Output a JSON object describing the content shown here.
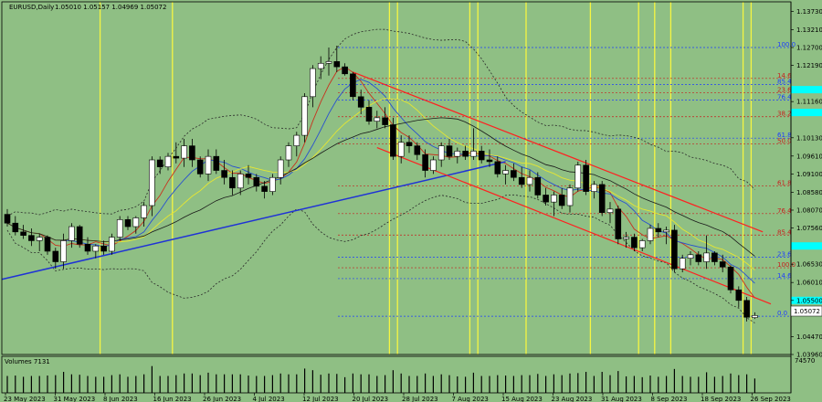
{
  "header": {
    "symbol": "EURUSD,Daily",
    "ohlc": "1.05010 1.05157 1.04969 1.05072"
  },
  "volume_panel": {
    "label": "Volumes 7131",
    "axis_max": "74570"
  },
  "price_axis": {
    "labels": [
      "1.13730",
      "1.13210",
      "1.12700",
      "1.12190",
      "1.11160",
      "1.10130",
      "1.09610",
      "1.09100",
      "1.08580",
      "1.08070",
      "1.07560",
      "1.06530",
      "1.06010",
      "1.05500",
      "1.04470",
      "1.03960"
    ],
    "current_price": "1.05072"
  },
  "time_axis": [
    "23 May 2023",
    "31 May 2023",
    "8 Jun 2023",
    "16 Jun 2023",
    "26 Jun 2023",
    "4 Jul 2023",
    "12 Jul 2023",
    "20 Jul 2023",
    "28 Jul 2023",
    "7 Aug 2023",
    "15 Aug 2023",
    "23 Aug 2023",
    "31 Aug 2023",
    "8 Sep 2023",
    "18 Sep 2023",
    "26 Sep 2023"
  ],
  "fib_levels": [
    {
      "label": "100.0",
      "color": "#1e3cff",
      "price": 1.127
    },
    {
      "label": "14.6",
      "color": "#c81e1e",
      "price": 1.1182
    },
    {
      "label": "85.4",
      "color": "#1e3cff",
      "price": 1.1165
    },
    {
      "label": "23.6",
      "color": "#c81e1e",
      "price": 1.1141
    },
    {
      "label": "76.4",
      "color": "#1e3cff",
      "price": 1.112
    },
    {
      "label": "38.2",
      "color": "#c81e1e",
      "price": 1.1073
    },
    {
      "label": "61.8",
      "color": "#1e3cff",
      "price": 1.1012
    },
    {
      "label": "50.0",
      "color": "#c81e1e",
      "price": 1.0996
    },
    {
      "label": "61.8",
      "color": "#c81e1e",
      "price": 1.0876
    },
    {
      "label": "76.4",
      "color": "#c81e1e",
      "price": 1.0797
    },
    {
      "label": "85.4",
      "color": "#c81e1e",
      "price": 1.0736
    },
    {
      "label": "23.6",
      "color": "#1e3cff",
      "price": 1.0673
    },
    {
      "label": "100.0",
      "color": "#c81e1e",
      "price": 1.0643
    },
    {
      "label": "14.6",
      "color": "#1e3cff",
      "price": 1.0612
    },
    {
      "label": "0.0",
      "color": "#1e3cff",
      "price": 1.0505
    }
  ],
  "colors": {
    "background": "#8fbf84",
    "bull": "#ffffff",
    "bear": "#000000",
    "channel": "#ff2020",
    "trendline": "#1f32d6",
    "vline": "#f5f542",
    "ma_red": "#c8321e",
    "ma_blue": "#2850d0",
    "ma_yellow": "#e6e632",
    "ma_black": "#1a1a1a",
    "band": "#2a2a2a",
    "cyan_box": "#00ffff"
  },
  "chart_data": {
    "type": "candlestick",
    "symbol": "EURUSD",
    "timeframe": "Daily",
    "ylim": [
      1.0396,
      1.14
    ],
    "x_ticks": [
      "23 May 2023",
      "31 May 2023",
      "8 Jun 2023",
      "16 Jun 2023",
      "26 Jun 2023",
      "4 Jul 2023",
      "12 Jul 2023",
      "20 Jul 2023",
      "28 Jul 2023",
      "7 Aug 2023",
      "15 Aug 2023",
      "23 Aug 2023",
      "31 Aug 2023",
      "8 Sep 2023",
      "18 Sep 2023",
      "26 Sep 2023"
    ],
    "ohlc": [
      {
        "o": 1.0795,
        "h": 1.081,
        "l": 1.076,
        "c": 1.077
      },
      {
        "o": 1.077,
        "h": 1.079,
        "l": 1.0735,
        "c": 1.0745
      },
      {
        "o": 1.0745,
        "h": 1.0765,
        "l": 1.0725,
        "c": 1.0735
      },
      {
        "o": 1.0735,
        "h": 1.0755,
        "l": 1.0705,
        "c": 1.072
      },
      {
        "o": 1.072,
        "h": 1.074,
        "l": 1.069,
        "c": 1.073
      },
      {
        "o": 1.073,
        "h": 1.0735,
        "l": 1.068,
        "c": 1.069
      },
      {
        "o": 1.069,
        "h": 1.07,
        "l": 1.064,
        "c": 1.066
      },
      {
        "o": 1.066,
        "h": 1.074,
        "l": 1.064,
        "c": 1.072
      },
      {
        "o": 1.072,
        "h": 1.077,
        "l": 1.07,
        "c": 1.076
      },
      {
        "o": 1.076,
        "h": 1.0765,
        "l": 1.07,
        "c": 1.071
      },
      {
        "o": 1.071,
        "h": 1.073,
        "l": 1.068,
        "c": 1.069
      },
      {
        "o": 1.069,
        "h": 1.071,
        "l": 1.067,
        "c": 1.0705
      },
      {
        "o": 1.0705,
        "h": 1.072,
        "l": 1.068,
        "c": 1.069
      },
      {
        "o": 1.069,
        "h": 1.074,
        "l": 1.068,
        "c": 1.073
      },
      {
        "o": 1.073,
        "h": 1.079,
        "l": 1.072,
        "c": 1.078
      },
      {
        "o": 1.078,
        "h": 1.079,
        "l": 1.075,
        "c": 1.076
      },
      {
        "o": 1.076,
        "h": 1.079,
        "l": 1.074,
        "c": 1.0785
      },
      {
        "o": 1.0785,
        "h": 1.083,
        "l": 1.076,
        "c": 1.082
      },
      {
        "o": 1.082,
        "h": 1.096,
        "l": 1.079,
        "c": 1.095
      },
      {
        "o": 1.095,
        "h": 1.096,
        "l": 1.091,
        "c": 1.093
      },
      {
        "o": 1.093,
        "h": 1.097,
        "l": 1.092,
        "c": 1.096
      },
      {
        "o": 1.096,
        "h": 1.1,
        "l": 1.094,
        "c": 1.0955
      },
      {
        "o": 1.0955,
        "h": 1.101,
        "l": 1.093,
        "c": 1.099
      },
      {
        "o": 1.099,
        "h": 1.101,
        "l": 1.093,
        "c": 1.095
      },
      {
        "o": 1.095,
        "h": 1.096,
        "l": 1.09,
        "c": 1.091
      },
      {
        "o": 1.091,
        "h": 1.098,
        "l": 1.089,
        "c": 1.096
      },
      {
        "o": 1.096,
        "h": 1.098,
        "l": 1.091,
        "c": 1.092
      },
      {
        "o": 1.092,
        "h": 1.095,
        "l": 1.088,
        "c": 1.09
      },
      {
        "o": 1.09,
        "h": 1.092,
        "l": 1.085,
        "c": 1.087
      },
      {
        "o": 1.087,
        "h": 1.092,
        "l": 1.085,
        "c": 1.091
      },
      {
        "o": 1.091,
        "h": 1.0935,
        "l": 1.088,
        "c": 1.09
      },
      {
        "o": 1.09,
        "h": 1.091,
        "l": 1.086,
        "c": 1.0875
      },
      {
        "o": 1.0875,
        "h": 1.089,
        "l": 1.084,
        "c": 1.086
      },
      {
        "o": 1.086,
        "h": 1.091,
        "l": 1.085,
        "c": 1.09
      },
      {
        "o": 1.09,
        "h": 1.096,
        "l": 1.088,
        "c": 1.095
      },
      {
        "o": 1.095,
        "h": 1.1,
        "l": 1.093,
        "c": 1.099
      },
      {
        "o": 1.099,
        "h": 1.103,
        "l": 1.096,
        "c": 1.102
      },
      {
        "o": 1.102,
        "h": 1.114,
        "l": 1.1,
        "c": 1.113
      },
      {
        "o": 1.113,
        "h": 1.122,
        "l": 1.11,
        "c": 1.121
      },
      {
        "o": 1.121,
        "h": 1.1245,
        "l": 1.118,
        "c": 1.1225
      },
      {
        "o": 1.1225,
        "h": 1.127,
        "l": 1.119,
        "c": 1.123
      },
      {
        "o": 1.123,
        "h": 1.1275,
        "l": 1.12,
        "c": 1.1215
      },
      {
        "o": 1.1215,
        "h": 1.1225,
        "l": 1.119,
        "c": 1.1195
      },
      {
        "o": 1.1195,
        "h": 1.12,
        "l": 1.112,
        "c": 1.113
      },
      {
        "o": 1.113,
        "h": 1.115,
        "l": 1.108,
        "c": 1.11
      },
      {
        "o": 1.11,
        "h": 1.112,
        "l": 1.105,
        "c": 1.106
      },
      {
        "o": 1.106,
        "h": 1.109,
        "l": 1.104,
        "c": 1.107
      },
      {
        "o": 1.107,
        "h": 1.11,
        "l": 1.104,
        "c": 1.105
      },
      {
        "o": 1.105,
        "h": 1.107,
        "l": 1.095,
        "c": 1.096
      },
      {
        "o": 1.096,
        "h": 1.102,
        "l": 1.094,
        "c": 1.1
      },
      {
        "o": 1.1,
        "h": 1.102,
        "l": 1.097,
        "c": 1.099
      },
      {
        "o": 1.099,
        "h": 1.1,
        "l": 1.095,
        "c": 1.0965
      },
      {
        "o": 1.0965,
        "h": 1.098,
        "l": 1.09,
        "c": 1.092
      },
      {
        "o": 1.092,
        "h": 1.096,
        "l": 1.091,
        "c": 1.095
      },
      {
        "o": 1.095,
        "h": 1.1,
        "l": 1.093,
        "c": 1.099
      },
      {
        "o": 1.099,
        "h": 1.101,
        "l": 1.095,
        "c": 1.096
      },
      {
        "o": 1.096,
        "h": 1.0985,
        "l": 1.094,
        "c": 1.0975
      },
      {
        "o": 1.0975,
        "h": 1.099,
        "l": 1.095,
        "c": 1.096
      },
      {
        "o": 1.096,
        "h": 1.104,
        "l": 1.095,
        "c": 1.0975
      },
      {
        "o": 1.0975,
        "h": 1.099,
        "l": 1.094,
        "c": 1.095
      },
      {
        "o": 1.095,
        "h": 1.098,
        "l": 1.093,
        "c": 1.0945
      },
      {
        "o": 1.0945,
        "h": 1.096,
        "l": 1.09,
        "c": 1.091
      },
      {
        "o": 1.091,
        "h": 1.0935,
        "l": 1.088,
        "c": 1.092
      },
      {
        "o": 1.092,
        "h": 1.094,
        "l": 1.089,
        "c": 1.09
      },
      {
        "o": 1.09,
        "h": 1.093,
        "l": 1.087,
        "c": 1.088
      },
      {
        "o": 1.088,
        "h": 1.092,
        "l": 1.086,
        "c": 1.09
      },
      {
        "o": 1.09,
        "h": 1.0915,
        "l": 1.084,
        "c": 1.085
      },
      {
        "o": 1.085,
        "h": 1.087,
        "l": 1.082,
        "c": 1.083
      },
      {
        "o": 1.083,
        "h": 1.086,
        "l": 1.079,
        "c": 1.085
      },
      {
        "o": 1.085,
        "h": 1.087,
        "l": 1.081,
        "c": 1.082
      },
      {
        "o": 1.082,
        "h": 1.088,
        "l": 1.08,
        "c": 1.087
      },
      {
        "o": 1.087,
        "h": 1.0945,
        "l": 1.086,
        "c": 1.0935
      },
      {
        "o": 1.0935,
        "h": 1.095,
        "l": 1.085,
        "c": 1.086
      },
      {
        "o": 1.086,
        "h": 1.089,
        "l": 1.084,
        "c": 1.088
      },
      {
        "o": 1.088,
        "h": 1.089,
        "l": 1.079,
        "c": 1.08
      },
      {
        "o": 1.08,
        "h": 1.083,
        "l": 1.077,
        "c": 1.081
      },
      {
        "o": 1.081,
        "h": 1.082,
        "l": 1.071,
        "c": 1.0725
      },
      {
        "o": 1.0725,
        "h": 1.0745,
        "l": 1.07,
        "c": 1.073
      },
      {
        "o": 1.073,
        "h": 1.074,
        "l": 1.069,
        "c": 1.07
      },
      {
        "o": 1.07,
        "h": 1.0725,
        "l": 1.069,
        "c": 1.072
      },
      {
        "o": 1.072,
        "h": 1.0765,
        "l": 1.071,
        "c": 1.0755
      },
      {
        "o": 1.0755,
        "h": 1.077,
        "l": 1.073,
        "c": 1.0745
      },
      {
        "o": 1.0745,
        "h": 1.076,
        "l": 1.071,
        "c": 1.075
      },
      {
        "o": 1.075,
        "h": 1.0765,
        "l": 1.063,
        "c": 1.064
      },
      {
        "o": 1.064,
        "h": 1.068,
        "l": 1.063,
        "c": 1.067
      },
      {
        "o": 1.067,
        "h": 1.069,
        "l": 1.065,
        "c": 1.068
      },
      {
        "o": 1.068,
        "h": 1.069,
        "l": 1.065,
        "c": 1.066
      },
      {
        "o": 1.066,
        "h": 1.0735,
        "l": 1.064,
        "c": 1.0685
      },
      {
        "o": 1.0685,
        "h": 1.069,
        "l": 1.065,
        "c": 1.066
      },
      {
        "o": 1.066,
        "h": 1.068,
        "l": 1.063,
        "c": 1.0645
      },
      {
        "o": 1.0645,
        "h": 1.065,
        "l": 1.057,
        "c": 1.058
      },
      {
        "o": 1.058,
        "h": 1.059,
        "l": 1.053,
        "c": 1.055
      },
      {
        "o": 1.055,
        "h": 1.056,
        "l": 1.049,
        "c": 1.0502
      },
      {
        "o": 1.0501,
        "h": 1.0516,
        "l": 1.0497,
        "c": 1.0507
      }
    ],
    "volume_axis_max": 74570,
    "annotations": [
      "Volumes 7131"
    ]
  }
}
